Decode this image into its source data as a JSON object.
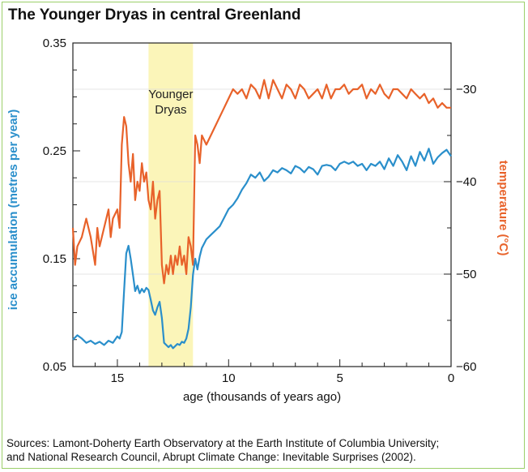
{
  "title": "The Younger Dryas in central Greenland",
  "sources_line1": "Sources: Lamont-Doherty Earth Observatory at the Earth Institute of Columbia University;",
  "sources_line2": "and National Research Council, Abrupt Climate Change: Inevitable Surprises (2002).",
  "colors": {
    "ice": "#2a8fcb",
    "temp": "#e8622a",
    "band": "#fbf5b9",
    "frame": "#9ccf6a"
  },
  "chart_data": {
    "type": "line",
    "title": "The Younger Dryas in central Greenland",
    "xlabel": "age (thousands of years ago)",
    "ylabel_left": "ice accumulation (metres per year)",
    "ylabel_right": "temperature (°C)",
    "x_reversed": true,
    "xlim": [
      17,
      0
    ],
    "ylim_left": [
      0.05,
      0.35
    ],
    "ylim_right": [
      -60,
      -25
    ],
    "x_ticks": [
      "15",
      "10",
      "5",
      "0"
    ],
    "y_left_ticks": [
      "0.35",
      "0.25",
      "0.15",
      "0.05"
    ],
    "y_right_ticks": [
      "−30",
      "−40",
      "−50",
      "−60"
    ],
    "annotation": {
      "label_line1": "Younger",
      "label_line2": "Dryas",
      "x_range": [
        13.6,
        11.6
      ]
    },
    "series": [
      {
        "name": "ice accumulation",
        "axis": "left",
        "x": [
          17.0,
          16.8,
          16.6,
          16.4,
          16.2,
          16.0,
          15.8,
          15.6,
          15.4,
          15.2,
          15.0,
          14.9,
          14.8,
          14.7,
          14.6,
          14.5,
          14.4,
          14.3,
          14.2,
          14.1,
          14.0,
          13.9,
          13.8,
          13.7,
          13.6,
          13.5,
          13.4,
          13.3,
          13.2,
          13.1,
          13.0,
          12.9,
          12.8,
          12.7,
          12.6,
          12.5,
          12.4,
          12.3,
          12.2,
          12.1,
          12.0,
          11.9,
          11.8,
          11.7,
          11.6,
          11.5,
          11.4,
          11.3,
          11.2,
          11.0,
          10.8,
          10.6,
          10.4,
          10.2,
          10.0,
          9.8,
          9.6,
          9.4,
          9.2,
          9.0,
          8.8,
          8.6,
          8.4,
          8.2,
          8.0,
          7.8,
          7.6,
          7.4,
          7.2,
          7.0,
          6.8,
          6.6,
          6.4,
          6.2,
          6.0,
          5.8,
          5.6,
          5.4,
          5.2,
          5.0,
          4.8,
          4.6,
          4.4,
          4.2,
          4.0,
          3.8,
          3.6,
          3.4,
          3.2,
          3.0,
          2.8,
          2.6,
          2.4,
          2.2,
          2.0,
          1.8,
          1.6,
          1.4,
          1.2,
          1.0,
          0.8,
          0.6,
          0.4,
          0.2,
          0.0
        ],
        "y": [
          0.075,
          0.079,
          0.076,
          0.072,
          0.074,
          0.071,
          0.073,
          0.07,
          0.074,
          0.072,
          0.078,
          0.076,
          0.082,
          0.12,
          0.155,
          0.162,
          0.15,
          0.135,
          0.12,
          0.125,
          0.118,
          0.122,
          0.119,
          0.123,
          0.121,
          0.112,
          0.102,
          0.098,
          0.105,
          0.11,
          0.095,
          0.072,
          0.07,
          0.068,
          0.07,
          0.067,
          0.069,
          0.071,
          0.07,
          0.073,
          0.072,
          0.076,
          0.085,
          0.105,
          0.135,
          0.15,
          0.14,
          0.152,
          0.16,
          0.168,
          0.172,
          0.176,
          0.18,
          0.188,
          0.196,
          0.2,
          0.206,
          0.214,
          0.22,
          0.228,
          0.225,
          0.23,
          0.222,
          0.226,
          0.232,
          0.23,
          0.234,
          0.232,
          0.229,
          0.236,
          0.234,
          0.23,
          0.235,
          0.233,
          0.228,
          0.236,
          0.237,
          0.236,
          0.232,
          0.238,
          0.24,
          0.238,
          0.24,
          0.236,
          0.238,
          0.232,
          0.238,
          0.236,
          0.24,
          0.233,
          0.243,
          0.236,
          0.246,
          0.24,
          0.232,
          0.245,
          0.236,
          0.249,
          0.241,
          0.252,
          0.238,
          0.244,
          0.248,
          0.251,
          0.245
        ]
      },
      {
        "name": "temperature",
        "axis": "right",
        "x": [
          17.0,
          16.9,
          16.8,
          16.6,
          16.4,
          16.2,
          16.0,
          15.9,
          15.8,
          15.6,
          15.4,
          15.3,
          15.2,
          15.0,
          14.9,
          14.8,
          14.7,
          14.6,
          14.5,
          14.4,
          14.3,
          14.2,
          14.1,
          14.0,
          13.9,
          13.8,
          13.7,
          13.6,
          13.5,
          13.4,
          13.3,
          13.2,
          13.1,
          13.0,
          12.9,
          12.8,
          12.7,
          12.6,
          12.5,
          12.4,
          12.3,
          12.2,
          12.1,
          12.0,
          11.9,
          11.8,
          11.7,
          11.6,
          11.5,
          11.4,
          11.3,
          11.2,
          11.0,
          10.8,
          10.6,
          10.4,
          10.2,
          10.0,
          9.8,
          9.6,
          9.4,
          9.2,
          9.0,
          8.8,
          8.6,
          8.4,
          8.2,
          8.0,
          7.8,
          7.6,
          7.4,
          7.2,
          7.0,
          6.8,
          6.6,
          6.4,
          6.2,
          6.0,
          5.8,
          5.6,
          5.4,
          5.2,
          5.0,
          4.8,
          4.6,
          4.4,
          4.2,
          4.0,
          3.8,
          3.6,
          3.4,
          3.2,
          3.0,
          2.8,
          2.6,
          2.4,
          2.2,
          2.0,
          1.8,
          1.6,
          1.4,
          1.2,
          1.0,
          0.8,
          0.6,
          0.4,
          0.2,
          0.0
        ],
        "y": [
          -45,
          -49,
          -47,
          -46,
          -44,
          -46,
          -49,
          -45,
          -47,
          -45,
          -43,
          -46,
          -44,
          -43,
          -45,
          -36,
          -33,
          -34,
          -38,
          -40,
          -37,
          -42,
          -40,
          -41,
          -38,
          -40,
          -39,
          -42,
          -43,
          -40,
          -44,
          -42,
          -41,
          -49,
          -51,
          -49,
          -50,
          -48,
          -50,
          -48,
          -49,
          -47,
          -49,
          -48,
          -50,
          -46,
          -47,
          -49,
          -35,
          -36,
          -38,
          -35,
          -36,
          -35,
          -34,
          -33,
          -32,
          -31,
          -30,
          -30.5,
          -30,
          -31,
          -29.5,
          -30,
          -31,
          -29,
          -31,
          -29,
          -30,
          -31,
          -29.5,
          -30,
          -31,
          -29.5,
          -30,
          -31,
          -30.5,
          -30,
          -31,
          -29.5,
          -31,
          -30,
          -30,
          -29.5,
          -30.5,
          -30,
          -30,
          -29.5,
          -31,
          -30,
          -30.5,
          -29.5,
          -30.5,
          -31,
          -30,
          -30,
          -30.5,
          -31,
          -30,
          -30.5,
          -31,
          -30.5,
          -31.5,
          -31,
          -32,
          -31.5,
          -32,
          -32
        ]
      }
    ]
  }
}
